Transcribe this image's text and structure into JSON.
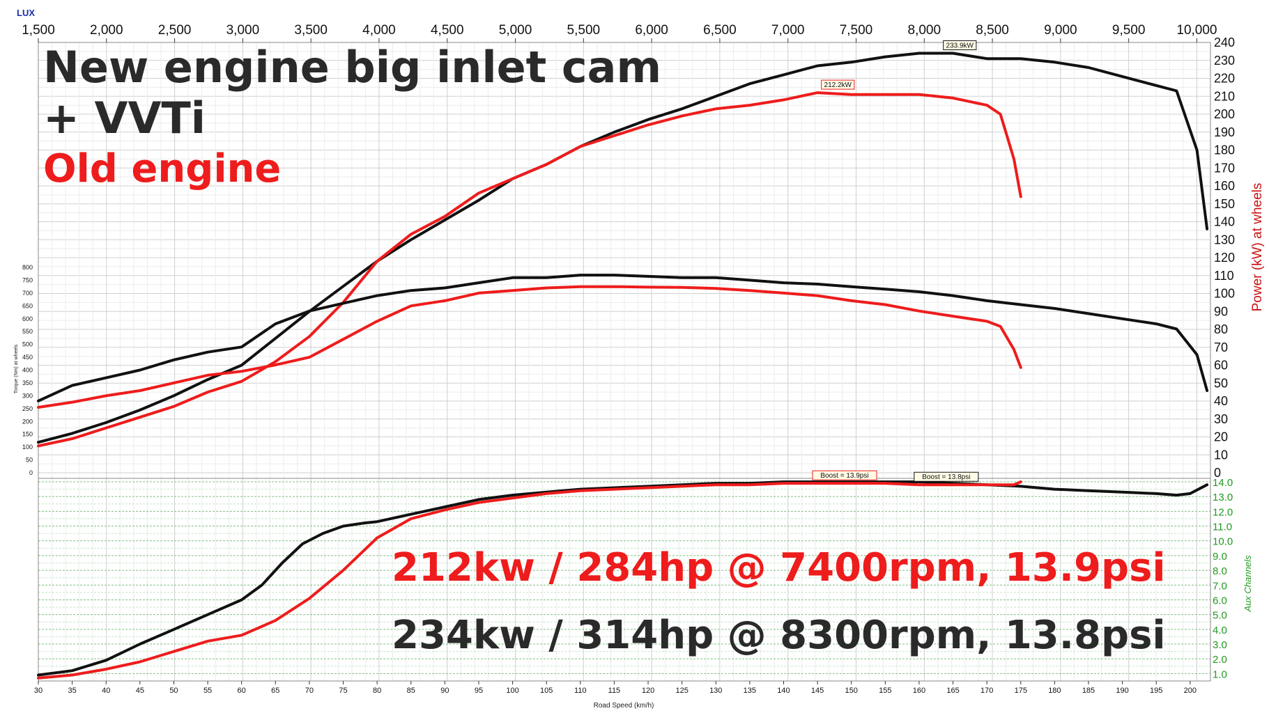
{
  "brand": "LUX",
  "headline": {
    "line1": "New engine big inlet cam",
    "line2": "+ VVTi",
    "old": "Old engine"
  },
  "results": {
    "red": "212kw / 284hp @ 7400rpm,  13.9psi",
    "black": "234kw / 314hp @ 8300rpm,  13.8psi"
  },
  "colors": {
    "new": "#111111",
    "old": "#ee1c1c",
    "grid": "#d9d9d9",
    "aux_axis": "#1f9a1f",
    "power_axis_label": "#cc1111",
    "brand": "#1a2fb0"
  },
  "chart_data": {
    "type": "line",
    "top_axis": {
      "label": "",
      "range": [
        1500,
        10100
      ],
      "ticks": [
        "1,500",
        "2,000",
        "2,500",
        "3,000",
        "3,500",
        "4,000",
        "4,500",
        "5,000",
        "5,500",
        "6,000",
        "6,500",
        "7,000",
        "7,500",
        "8,000",
        "8,500",
        "9,000",
        "9,500",
        "10,000"
      ]
    },
    "x_axis": {
      "label": "Road Speed (km/h)",
      "range": [
        30,
        203
      ],
      "ticks": [
        "30",
        "35",
        "40",
        "45",
        "50",
        "55",
        "60",
        "65",
        "70",
        "75",
        "80",
        "85",
        "90",
        "95",
        "100",
        "105",
        "110",
        "115",
        "120",
        "125",
        "130",
        "135",
        "140",
        "145",
        "150",
        "155",
        "160",
        "165",
        "170",
        "175",
        "180",
        "185",
        "190",
        "195",
        "200"
      ]
    },
    "power_axis": {
      "label": "Power (kW) at wheels",
      "range": [
        0,
        240
      ],
      "ticks": [
        "0",
        "10",
        "20",
        "30",
        "40",
        "50",
        "60",
        "70",
        "80",
        "90",
        "100",
        "110",
        "120",
        "130",
        "140",
        "150",
        "160",
        "170",
        "180",
        "190",
        "200",
        "210",
        "220",
        "230",
        "240"
      ]
    },
    "torque_axis": {
      "label": "Torque (Nm) at wheels",
      "range": [
        0,
        800
      ],
      "ticks": [
        "0",
        "50",
        "100",
        "150",
        "200",
        "250",
        "300",
        "350",
        "400",
        "450",
        "500",
        "550",
        "600",
        "650",
        "700",
        "750",
        "800"
      ]
    },
    "aux_axis": {
      "label": "Aux Channels",
      "range": [
        0.5,
        14.0
      ],
      "ticks": [
        "1.0",
        "2.0",
        "3.0",
        "4.0",
        "5.0",
        "6.0",
        "7.0",
        "8.0",
        "9.0",
        "10.0",
        "11.0",
        "12.0",
        "13.0",
        "14.0"
      ]
    },
    "annotations": [
      {
        "text": "233.9kW",
        "x": 166,
        "y": 234,
        "axis": "power",
        "series": "new"
      },
      {
        "text": "212.2kW",
        "x": 148,
        "y": 212,
        "axis": "power",
        "series": "old"
      },
      {
        "text": "Boost = 13.9psi",
        "x": 149,
        "y": 13.9,
        "axis": "aux",
        "series": "old"
      },
      {
        "text": "Boost = 13.8psi",
        "x": 164,
        "y": 13.8,
        "axis": "aux",
        "series": "new"
      }
    ],
    "series": [
      {
        "name": "New engine big inlet cam + VVTi",
        "color": "#111111",
        "axis": "power",
        "x": [
          30,
          35,
          40,
          45,
          50,
          55,
          60,
          65,
          70,
          75,
          80,
          85,
          90,
          95,
          100,
          105,
          110,
          115,
          120,
          125,
          130,
          135,
          140,
          145,
          150,
          155,
          160,
          165,
          170,
          175,
          180,
          185,
          190,
          195,
          198,
          201,
          202.5
        ],
        "y": [
          17,
          22,
          28,
          35,
          43,
          52,
          60,
          75,
          90,
          104,
          118,
          130,
          141,
          152,
          164,
          172,
          182,
          190,
          197,
          203,
          210,
          217,
          222,
          227,
          229,
          232,
          234,
          234,
          231,
          231,
          229,
          226,
          221,
          216,
          213,
          180,
          136
        ]
      },
      {
        "name": "Old engine",
        "color": "#ee1c1c",
        "axis": "power",
        "x": [
          30,
          35,
          40,
          45,
          50,
          55,
          60,
          65,
          70,
          75,
          80,
          85,
          90,
          95,
          100,
          105,
          110,
          115,
          120,
          125,
          130,
          135,
          140,
          145,
          150,
          155,
          160,
          165,
          170,
          172,
          174,
          175
        ],
        "y": [
          15,
          19,
          25,
          31,
          37,
          45,
          51,
          62,
          76,
          95,
          118,
          133,
          143,
          156,
          164,
          172,
          182,
          188,
          194,
          199,
          203,
          205,
          208,
          212,
          211,
          211,
          211,
          209,
          205,
          200,
          175,
          154
        ]
      },
      {
        "name": "New engine big inlet cam + VVTi",
        "color": "#111111",
        "axis": "torque",
        "x": [
          30,
          35,
          40,
          45,
          50,
          55,
          60,
          65,
          70,
          75,
          80,
          85,
          90,
          95,
          100,
          105,
          110,
          115,
          120,
          125,
          130,
          135,
          140,
          145,
          150,
          155,
          160,
          165,
          170,
          175,
          180,
          185,
          190,
          195,
          198,
          201,
          202.5
        ],
        "y": [
          280,
          340,
          370,
          400,
          440,
          470,
          490,
          580,
          630,
          660,
          690,
          710,
          720,
          740,
          760,
          760,
          770,
          770,
          765,
          760,
          760,
          750,
          740,
          735,
          725,
          715,
          705,
          690,
          670,
          655,
          640,
          620,
          600,
          580,
          560,
          460,
          320
        ]
      },
      {
        "name": "Old engine",
        "color": "#ee1c1c",
        "axis": "torque",
        "x": [
          30,
          35,
          40,
          45,
          50,
          55,
          60,
          65,
          70,
          75,
          80,
          85,
          90,
          95,
          100,
          105,
          110,
          115,
          120,
          125,
          130,
          135,
          140,
          145,
          150,
          155,
          160,
          165,
          170,
          172,
          174,
          175
        ],
        "y": [
          255,
          275,
          300,
          320,
          350,
          380,
          395,
          420,
          450,
          520,
          590,
          650,
          670,
          700,
          710,
          720,
          725,
          725,
          723,
          722,
          718,
          710,
          700,
          690,
          670,
          655,
          630,
          610,
          590,
          570,
          480,
          410
        ]
      },
      {
        "name": "New engine big inlet cam + VVTi",
        "color": "#111111",
        "axis": "aux",
        "x": [
          30,
          35,
          40,
          45,
          50,
          55,
          60,
          63,
          66,
          69,
          72,
          75,
          78,
          80,
          85,
          90,
          95,
          100,
          105,
          110,
          115,
          120,
          125,
          130,
          135,
          140,
          145,
          150,
          155,
          160,
          165,
          170,
          175,
          180,
          185,
          190,
          195,
          198,
          200,
          202.5
        ],
        "y": [
          0.9,
          1.2,
          1.9,
          3.0,
          4.0,
          5.0,
          6.0,
          7.0,
          8.5,
          9.8,
          10.5,
          11.0,
          11.2,
          11.3,
          11.8,
          12.3,
          12.8,
          13.1,
          13.3,
          13.5,
          13.6,
          13.7,
          13.8,
          13.9,
          13.9,
          14.0,
          14.0,
          14.0,
          14.0,
          14.0,
          13.9,
          13.8,
          13.7,
          13.5,
          13.4,
          13.3,
          13.2,
          13.1,
          13.2,
          13.8
        ]
      },
      {
        "name": "Old engine",
        "color": "#ee1c1c",
        "axis": "aux",
        "x": [
          30,
          35,
          40,
          45,
          50,
          55,
          60,
          65,
          70,
          75,
          80,
          85,
          90,
          95,
          100,
          105,
          110,
          115,
          120,
          125,
          130,
          135,
          140,
          145,
          150,
          155,
          160,
          165,
          170,
          174,
          175
        ],
        "y": [
          0.7,
          0.9,
          1.3,
          1.8,
          2.5,
          3.2,
          3.6,
          4.6,
          6.1,
          8.0,
          10.2,
          11.5,
          12.1,
          12.6,
          12.9,
          13.2,
          13.4,
          13.5,
          13.6,
          13.7,
          13.8,
          13.8,
          13.9,
          13.9,
          13.9,
          13.9,
          13.8,
          13.8,
          13.8,
          13.8,
          14.0
        ]
      }
    ]
  }
}
